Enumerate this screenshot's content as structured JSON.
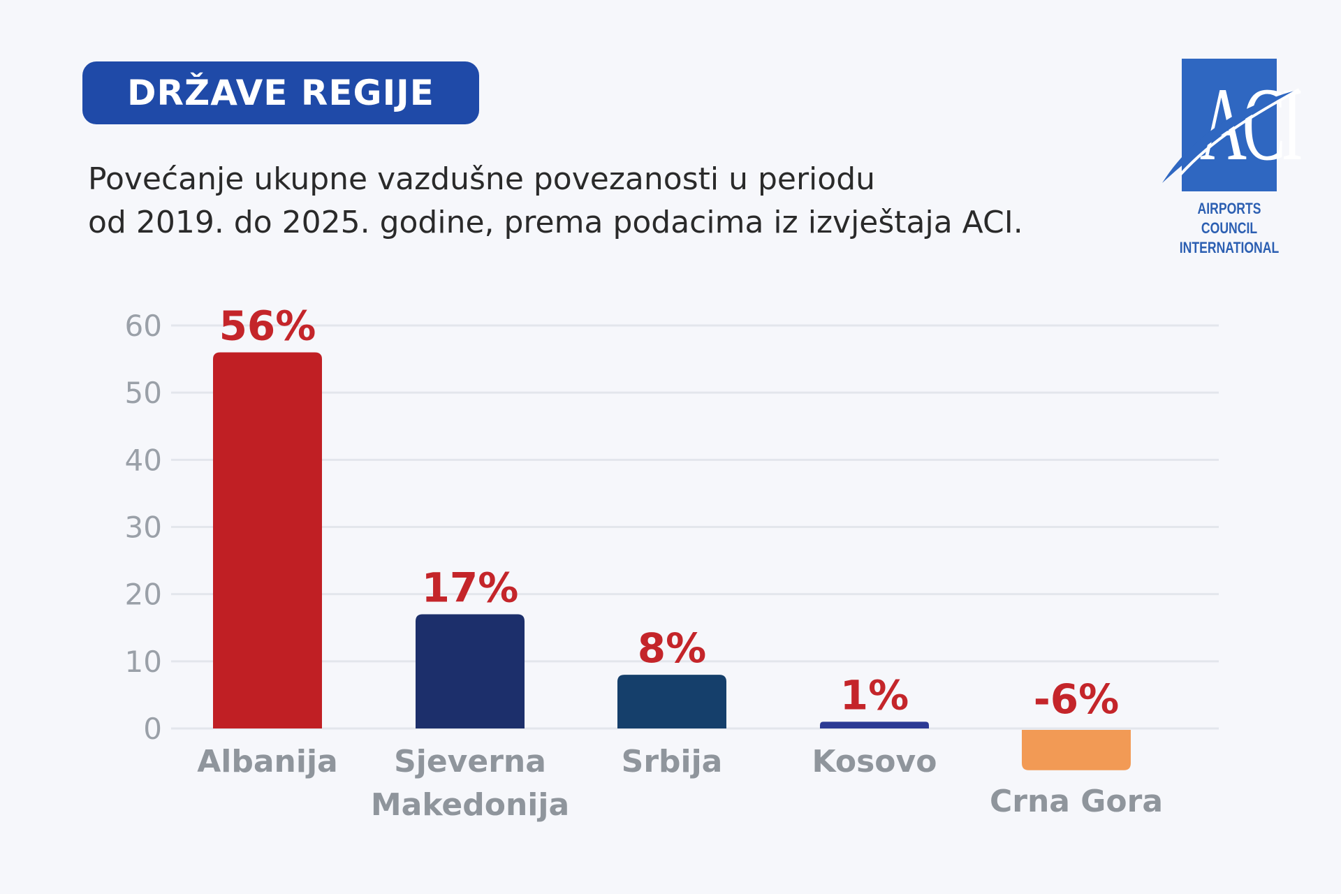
{
  "badge": {
    "label": "DRŽAVE REGIJE",
    "bg_color": "#1f4aa8"
  },
  "subtitle": {
    "line1": "Povećanje ukupne vazdušne povezanosti u periodu",
    "line2": "od 2019. do 2025. godine, prema podacima iz izvještaja ACI."
  },
  "logo": {
    "letters": "ACI",
    "name_line1": "AIRPORTS COUNCIL",
    "name_line2": "INTERNATIONAL"
  },
  "chart_data": {
    "type": "bar",
    "categories": [
      "Albanija",
      "Sjeverna Makedonija",
      "Srbija",
      "Kosovo",
      "Crna Gora"
    ],
    "category_lines": [
      [
        "Albanija"
      ],
      [
        "Sjeverna",
        "Makedonija"
      ],
      [
        "Srbija"
      ],
      [
        "Kosovo"
      ],
      [
        "Crna Gora"
      ]
    ],
    "values": [
      56,
      17,
      8,
      1,
      -6
    ],
    "value_labels": [
      "56%",
      "17%",
      "8%",
      "1%",
      "-6%"
    ],
    "colors": [
      "#c01f24",
      "#1c2f6b",
      "#153f6b",
      "#2b3a94",
      "#f29a55"
    ],
    "label_color": "#c4252a",
    "ylim": [
      0,
      60
    ],
    "yticks": [
      0,
      10,
      20,
      30,
      40,
      50,
      60
    ],
    "grid": true,
    "xlabel": "",
    "ylabel": ""
  }
}
